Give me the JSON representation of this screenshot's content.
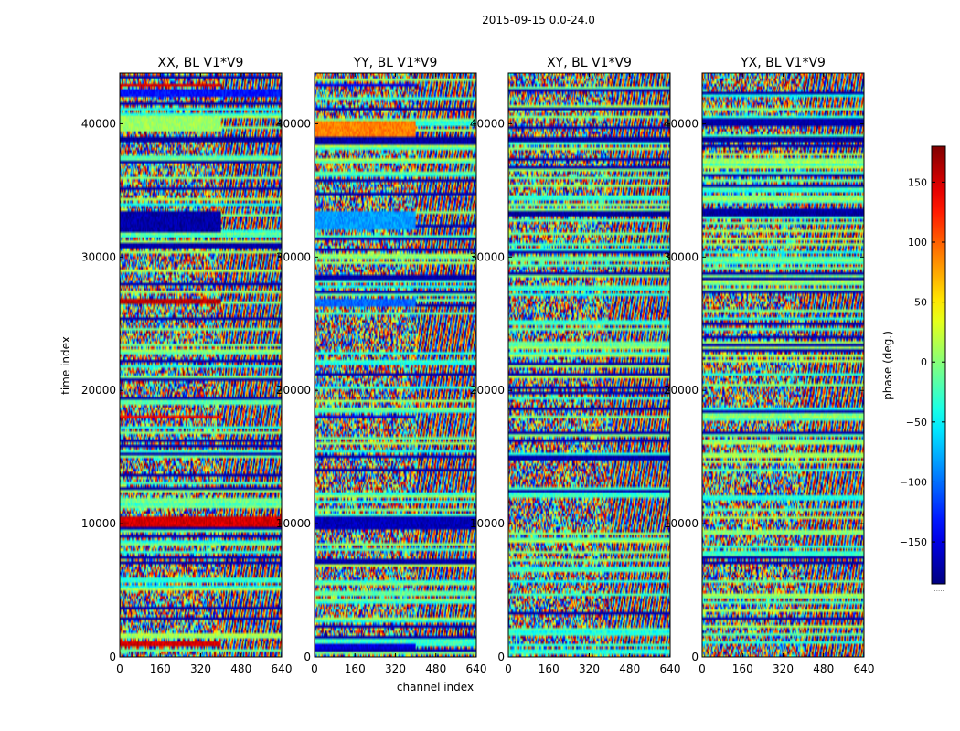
{
  "figure": {
    "title": "2015-09-15 0.0-24.0",
    "xlabel": "channel index",
    "ylabel": "time index",
    "colorbar_label": "phase (deg.)",
    "colorbar_caption": "......"
  },
  "chart_data": [
    {
      "type": "heatmap",
      "title": "XX, BL V1*V9",
      "xlabel": "channel index",
      "ylabel": "time index",
      "xlim": [
        0,
        640
      ],
      "ylim": [
        0,
        43800
      ],
      "x_ticks": [
        0,
        160,
        320,
        480,
        640
      ],
      "y_ticks": [
        0,
        10000,
        20000,
        30000,
        40000
      ],
      "colormap": "jet",
      "value_range": [
        -180,
        180
      ],
      "channel_transition": 400,
      "notable_bands": [
        {
          "t0": 42800,
          "t1": 43100,
          "phase": 150,
          "extent": "partial"
        },
        {
          "t0": 42000,
          "t1": 42600,
          "phase": -130,
          "extent": "full"
        },
        {
          "t0": 39500,
          "t1": 40600,
          "phase": 10,
          "extent": "partial"
        },
        {
          "t0": 38700,
          "t1": 39100,
          "phase": -170,
          "extent": "full"
        },
        {
          "t0": 31800,
          "t1": 33500,
          "phase": -165,
          "extent": "partial"
        },
        {
          "t0": 26500,
          "t1": 26900,
          "phase": 160,
          "extent": "partial"
        },
        {
          "t0": 17900,
          "t1": 18200,
          "phase": 140,
          "extent": "partial"
        },
        {
          "t0": 9800,
          "t1": 10500,
          "phase": 150,
          "extent": "full"
        },
        {
          "t0": 800,
          "t1": 1100,
          "phase": 150,
          "extent": "partial"
        }
      ]
    },
    {
      "type": "heatmap",
      "title": "YY, BL V1*V9",
      "xlabel": "channel index",
      "ylabel": "time index",
      "xlim": [
        0,
        640
      ],
      "ylim": [
        0,
        43800
      ],
      "x_ticks": [
        0,
        160,
        320,
        480,
        640
      ],
      "y_ticks": [
        0,
        10000,
        20000,
        30000,
        40000
      ],
      "colormap": "jet",
      "value_range": [
        -180,
        180
      ],
      "channel_transition": 400,
      "notable_bands": [
        {
          "t0": 42800,
          "t1": 43100,
          "phase": -140,
          "extent": "partial"
        },
        {
          "t0": 39000,
          "t1": 40200,
          "phase": 90,
          "extent": "partial"
        },
        {
          "t0": 38700,
          "t1": 39000,
          "phase": -170,
          "extent": "full"
        },
        {
          "t0": 32000,
          "t1": 33400,
          "phase": -80,
          "extent": "partial"
        },
        {
          "t0": 26300,
          "t1": 26800,
          "phase": -100,
          "extent": "partial"
        },
        {
          "t0": 17900,
          "t1": 18200,
          "phase": -150,
          "extent": "partial"
        },
        {
          "t0": 9500,
          "t1": 10600,
          "phase": -160,
          "extent": "full"
        },
        {
          "t0": 600,
          "t1": 900,
          "phase": -150,
          "extent": "partial"
        }
      ]
    },
    {
      "type": "heatmap",
      "title": "XY, BL V1*V9",
      "xlabel": "channel index",
      "ylabel": "time index",
      "xlim": [
        0,
        640
      ],
      "ylim": [
        0,
        43800
      ],
      "x_ticks": [
        0,
        160,
        320,
        480,
        640
      ],
      "y_ticks": [
        0,
        10000,
        20000,
        30000,
        40000
      ],
      "colormap": "jet",
      "value_range": [
        -180,
        180
      ],
      "channel_transition": 400,
      "notable_bands": [
        {
          "t0": 38700,
          "t1": 39000,
          "phase": -170,
          "extent": "full"
        },
        {
          "t0": 33000,
          "t1": 33400,
          "phase": -170,
          "extent": "full"
        }
      ]
    },
    {
      "type": "heatmap",
      "title": "YX, BL V1*V9",
      "xlabel": "channel index",
      "ylabel": "time index",
      "xlim": [
        0,
        640
      ],
      "ylim": [
        0,
        43800
      ],
      "x_ticks": [
        0,
        160,
        320,
        480,
        640
      ],
      "y_ticks": [
        0,
        10000,
        20000,
        30000,
        40000
      ],
      "colormap": "jet",
      "value_range": [
        -180,
        180
      ],
      "channel_transition": 400,
      "notable_bands": [
        {
          "t0": 38700,
          "t1": 39000,
          "phase": -170,
          "extent": "full"
        },
        {
          "t0": 33000,
          "t1": 33400,
          "phase": -170,
          "extent": "full"
        }
      ]
    }
  ],
  "colorbar": {
    "range": [
      -185,
      180
    ],
    "ticks": [
      -150,
      -100,
      -50,
      0,
      50,
      100,
      150
    ],
    "colormap": "jet"
  }
}
